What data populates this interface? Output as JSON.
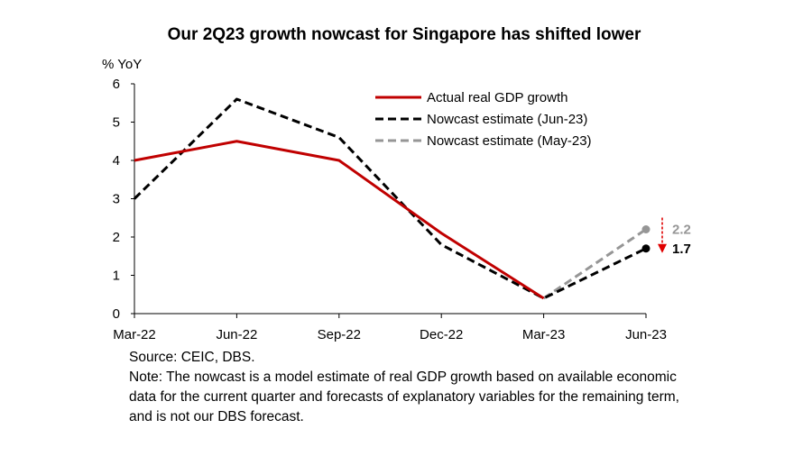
{
  "chart_data": {
    "type": "line",
    "title": "Our 2Q23 growth nowcast for Singapore has shifted lower",
    "ylabel": "% YoY",
    "xlabel": "",
    "ylim": [
      0,
      6
    ],
    "yticks": [
      0,
      1,
      2,
      3,
      4,
      5,
      6
    ],
    "categories": [
      "Mar-22",
      "Jun-22",
      "Sep-22",
      "Dec-22",
      "Mar-23",
      "Jun-23"
    ],
    "series": [
      {
        "name": "Actual real GDP growth",
        "style": "solid",
        "color": "#c00000",
        "values": [
          4.0,
          4.5,
          4.0,
          2.1,
          0.4,
          null
        ]
      },
      {
        "name": "Nowcast estimate (Jun-23)",
        "style": "dashed",
        "color": "#000000",
        "values": [
          3.0,
          5.6,
          4.6,
          1.8,
          0.4,
          1.7
        ]
      },
      {
        "name": "Nowcast estimate (May-23)",
        "style": "dashed",
        "color": "#969696",
        "values": [
          null,
          null,
          null,
          null,
          0.4,
          2.2
        ]
      }
    ],
    "annotations": [
      {
        "text": "2.2",
        "value": 2.2,
        "color": "#969696"
      },
      {
        "text": "1.7",
        "value": 1.7,
        "color": "#000000"
      }
    ],
    "legend_position": "top-right"
  },
  "footer": {
    "source": "Source: CEIC, DBS.",
    "note_lines": [
      "Note: The nowcast is a model estimate of real GDP growth based on available economic",
      "data for the current quarter and forecasts of explanatory variables for the remaining term,",
      "and is not our DBS forecast."
    ]
  }
}
